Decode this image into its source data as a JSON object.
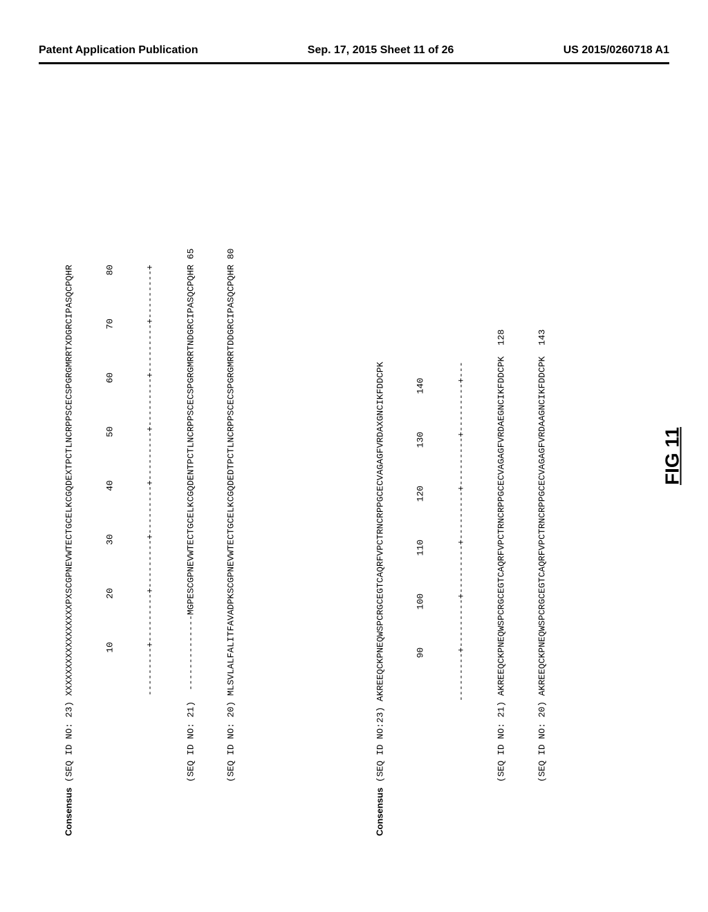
{
  "header": {
    "left": "Patent Application Publication",
    "center": "Sep. 17, 2015  Sheet 11 of 26",
    "right": "US 2015/0260718 A1"
  },
  "figure_label": "FIG 11",
  "alignment": {
    "block1": {
      "consensus_label": "Consensus",
      "consensus_id": "(SEQ ID NO: 23)",
      "consensus_seq": "XXXXXXXXXXXXXXXXXPXSCGPNEVWTECTGCELKCGQDEXTPCTLNCRPPSCECSPGRGMRRTXDGRCIPASQCPQHR",
      "ruler_marks": "---------+---------+---------+---------+---------+---------+---------+---------+",
      "ruler_nums": "        10        20        30        40        50        60        70        80",
      "seq1_id": "(SEQ ID NO: 21)",
      "seq1_seq": "--------------MGPESCGPNEVWTECTGCELKCGQDENTPCTLNCRPPSCECSPGRGMRRTNDGRCIPASQCPQHR",
      "seq1_end": " 65",
      "seq2_id": "(SEQ ID NO: 20)",
      "seq2_seq": "MLSVLALFALITFAVADPKSCGPNEVWTECTGCELKCGQDEDTPCTLNCRPPSCECSPGRGMRRTDDGRCIPASQCPQHR",
      "seq2_end": " 80"
    },
    "block2": {
      "consensus_label": "Consensus",
      "consensus_id": "(SEQ ID NO:23)",
      "consensus_seq": "AKREEQCKPNEQWSPCRGCEGTCAQRFVPCTRNCRPPGCECVAGAGFVRDAXGNCIKFDDCPK",
      "ruler_marks": "---------+---------+---------+---------+---------+---------+---",
      "ruler_nums": "        90       100       110       120       130       140",
      "seq1_id": "(SEQ ID NO: 21)",
      "seq1_seq": "AKREEQCKPNEQWSPCRGCEGTCAQRFVPCTRNCRPPGCECVAGAGFVRDAEGNCIKFDDCPK",
      "seq1_end": "  128",
      "seq2_id": "(SEQ ID NO: 20)",
      "seq2_seq": "AKREEQCKPNEQWSPCRGCEGTCAQRFVPCTRNCRPPGCECVAGAGFVRDAAGNCIKFDDCPK",
      "seq2_end": "  143"
    }
  }
}
